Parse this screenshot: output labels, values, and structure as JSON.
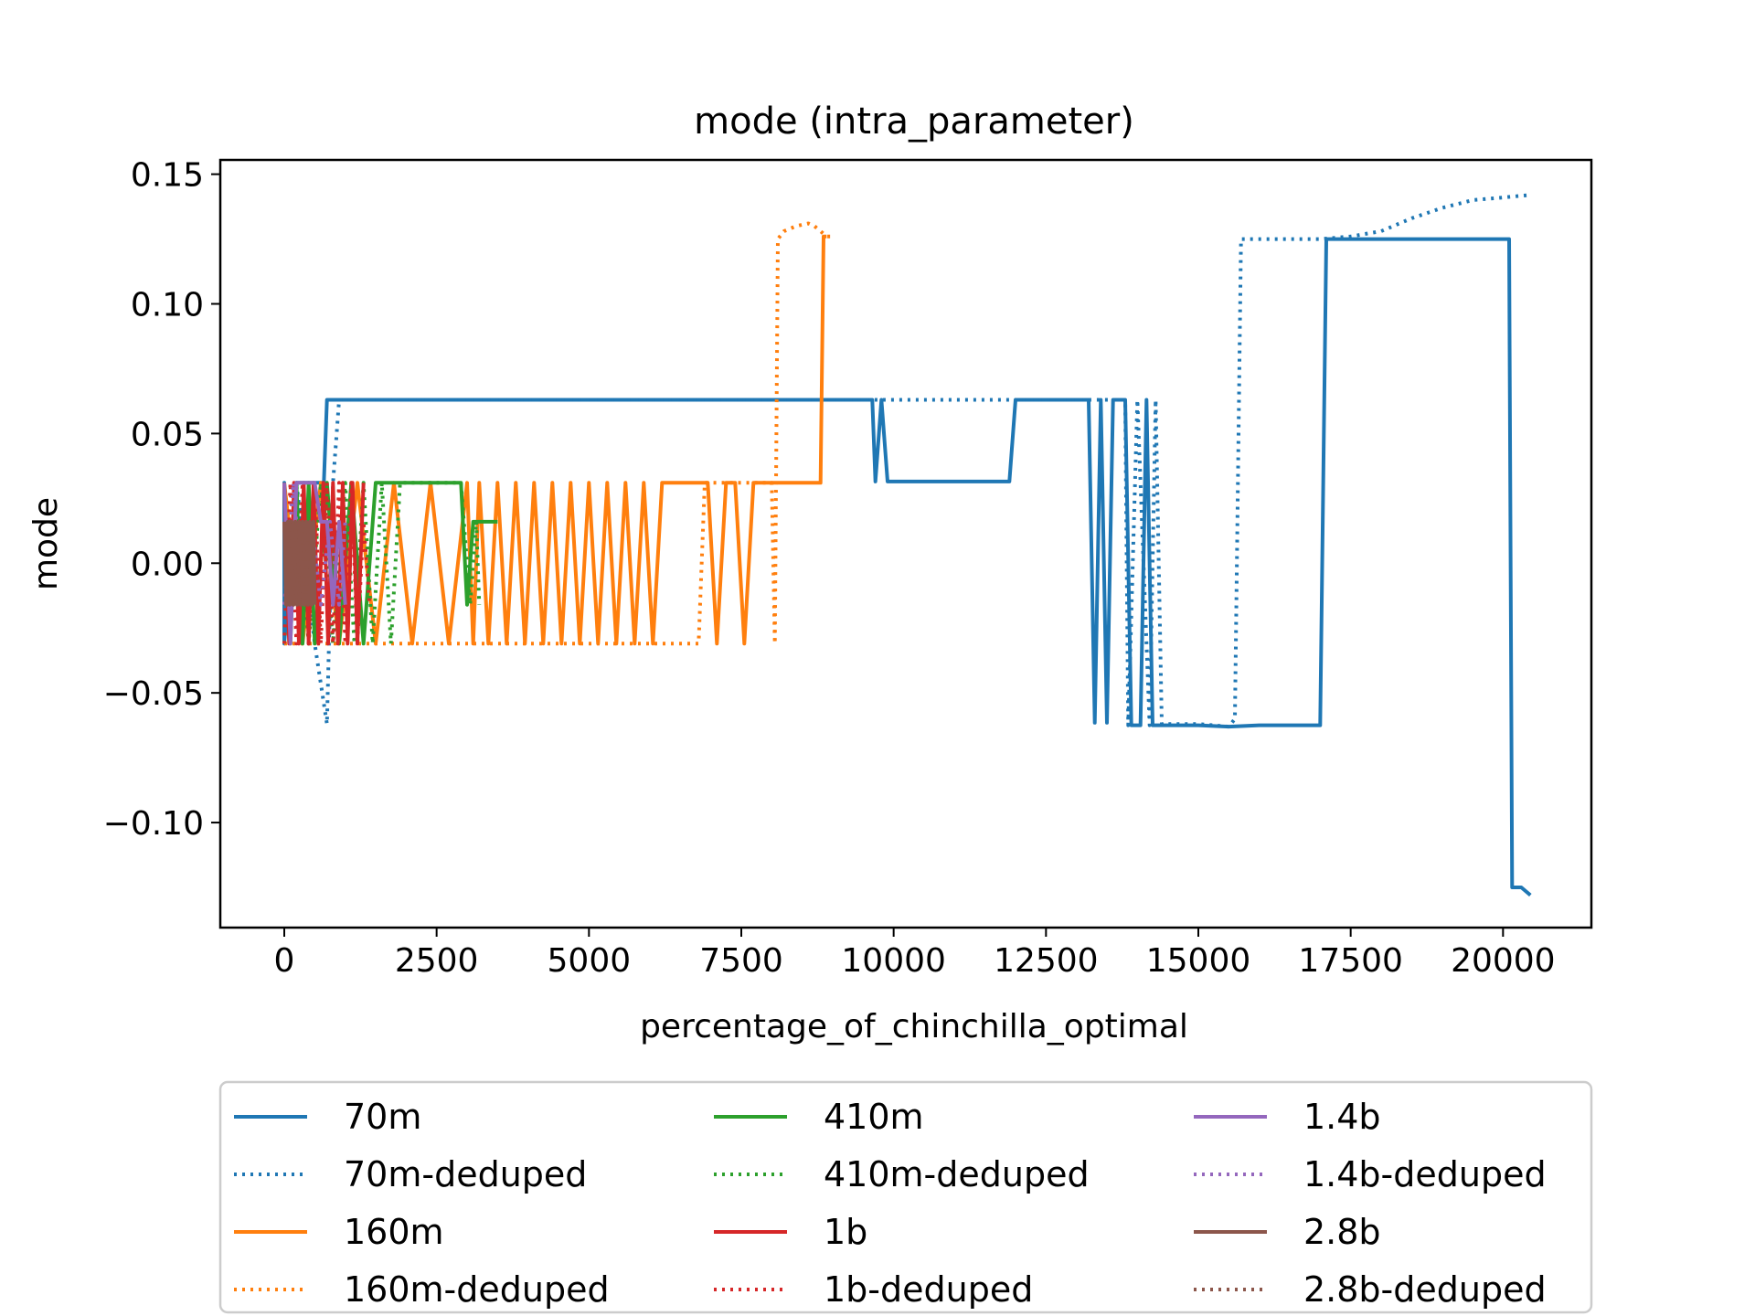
{
  "chart_data": {
    "type": "line",
    "title": "mode (intra_parameter)",
    "xlabel": "percentage_of_chinchilla_optimal",
    "ylabel": "mode",
    "xlim": [
      -1050,
      21450
    ],
    "ylim": [
      -0.1405,
      0.1555
    ],
    "xticks": [
      0,
      2500,
      5000,
      7500,
      10000,
      12500,
      15000,
      17500,
      20000
    ],
    "xtick_labels": [
      "0",
      "2500",
      "5000",
      "7500",
      "10000",
      "12500",
      "15000",
      "17500",
      "20000"
    ],
    "yticks": [
      0.15,
      0.1,
      0.05,
      0.0,
      -0.05,
      -0.1
    ],
    "ytick_labels": [
      "0.15",
      "0.10",
      "0.05",
      "0.00",
      "−0.05",
      "−0.10"
    ],
    "grid": false,
    "legend_placement": "below",
    "series": [
      {
        "name": "70m",
        "color": "#1f77b4",
        "dash": "solid",
        "x": [
          0,
          0,
          0,
          0,
          200,
          480,
          650,
          700,
          1000,
          2000,
          3000,
          4000,
          5000,
          6000,
          7000,
          8000,
          9000,
          9400,
          9650,
          9700,
          9800,
          9900,
          10000,
          10800,
          11500,
          11900,
          12000,
          12200,
          12600,
          13100,
          13200,
          13300,
          13400,
          13500,
          13600,
          13800,
          13900,
          14050,
          14150,
          14250,
          14500,
          15000,
          15500,
          16000,
          16500,
          17000,
          17100,
          17150,
          17200,
          18000,
          19000,
          19900,
          20000,
          20100,
          20150,
          20300,
          20450
        ],
        "y": [
          0.031,
          -0.031,
          0.031,
          -0.031,
          0.031,
          0.031,
          0.031,
          0.063,
          0.063,
          0.063,
          0.063,
          0.063,
          0.063,
          0.063,
          0.063,
          0.063,
          0.063,
          0.063,
          0.063,
          0.0315,
          0.063,
          0.0315,
          0.0315,
          0.0315,
          0.0315,
          0.0315,
          0.063,
          0.063,
          0.063,
          0.063,
          0.063,
          -0.0615,
          0.063,
          -0.0615,
          0.063,
          0.063,
          -0.0625,
          -0.0625,
          0.063,
          -0.0625,
          -0.0625,
          -0.0625,
          -0.063,
          -0.0625,
          -0.0625,
          -0.0625,
          0.125,
          0.125,
          0.125,
          0.125,
          0.125,
          0.125,
          0.125,
          0.125,
          -0.125,
          -0.125,
          -0.128
        ]
      },
      {
        "name": "70m-deduped",
        "color": "#1f77b4",
        "dash": "dot",
        "x": [
          0,
          200,
          500,
          700,
          800,
          850,
          900,
          1200,
          2000,
          4000,
          6000,
          8000,
          10000,
          12000,
          13000,
          13800,
          13850,
          14000,
          14200,
          14300,
          14400,
          15000,
          15500,
          15600,
          15700,
          16500,
          17000,
          17500,
          18000,
          18500,
          19000,
          19500,
          20000,
          20450
        ],
        "y": [
          0.0,
          0.031,
          -0.031,
          -0.062,
          0.031,
          0.047,
          0.063,
          0.063,
          0.063,
          0.063,
          0.063,
          0.063,
          0.063,
          0.063,
          0.063,
          0.063,
          -0.0625,
          0.063,
          -0.0625,
          0.063,
          -0.062,
          -0.062,
          -0.063,
          -0.06,
          0.125,
          0.125,
          0.125,
          0.126,
          0.128,
          0.133,
          0.137,
          0.14,
          0.141,
          0.142
        ]
      },
      {
        "name": "160m",
        "color": "#ff7f0e",
        "dash": "solid",
        "x": [
          0,
          300,
          600,
          900,
          1200,
          1500,
          1800,
          2100,
          2400,
          2700,
          3000,
          3100,
          3200,
          3350,
          3500,
          3650,
          3800,
          3950,
          4100,
          4250,
          4400,
          4550,
          4700,
          4850,
          5000,
          5150,
          5300,
          5450,
          5600,
          5750,
          5900,
          6050,
          6200,
          6350,
          6500,
          6650,
          6800,
          6950,
          7100,
          7250,
          7400,
          7550,
          7700,
          7850,
          8000,
          8200,
          8400,
          8600,
          8800,
          8850,
          8900
        ],
        "y": [
          0.031,
          -0.031,
          0.031,
          -0.031,
          0.031,
          -0.031,
          0.031,
          -0.031,
          0.031,
          -0.031,
          0.031,
          -0.031,
          0.031,
          -0.031,
          0.031,
          -0.031,
          0.031,
          -0.031,
          0.031,
          -0.031,
          0.031,
          -0.031,
          0.031,
          -0.031,
          0.031,
          -0.031,
          0.031,
          -0.031,
          0.031,
          -0.031,
          0.031,
          -0.031,
          0.031,
          0.031,
          0.031,
          0.031,
          0.031,
          0.031,
          -0.031,
          0.031,
          0.031,
          -0.031,
          0.031,
          0.031,
          0.031,
          0.031,
          0.031,
          0.031,
          0.031,
          0.126,
          0.126
        ]
      },
      {
        "name": "160m-deduped",
        "color": "#ff7f0e",
        "dash": "dot",
        "x": [
          0,
          1000,
          2000,
          3000,
          4000,
          5000,
          6000,
          6500,
          6700,
          6800,
          6900,
          7000,
          7500,
          7800,
          8000,
          8050,
          8100,
          8200,
          8400,
          8600,
          8700,
          8800,
          8900,
          9000
        ],
        "y": [
          -0.031,
          -0.031,
          -0.031,
          -0.031,
          -0.031,
          -0.031,
          -0.031,
          -0.031,
          -0.031,
          -0.031,
          0.031,
          0.031,
          0.031,
          0.031,
          0.031,
          -0.031,
          0.125,
          0.128,
          0.13,
          0.131,
          0.13,
          0.128,
          0.126,
          0.126
        ]
      },
      {
        "name": "410m",
        "color": "#2ca02c",
        "dash": "solid",
        "x": [
          0,
          100,
          200,
          300,
          400,
          500,
          700,
          900,
          1100,
          1300,
          1500,
          1700,
          2000,
          2500,
          2900,
          3000,
          3100,
          3200,
          3300,
          3400,
          3500
        ],
        "y": [
          0.031,
          -0.031,
          0.031,
          -0.031,
          0.031,
          -0.031,
          0.031,
          -0.031,
          0.031,
          -0.031,
          0.031,
          0.031,
          0.031,
          0.031,
          0.031,
          -0.016,
          0.016,
          0.016,
          0.016,
          0.016,
          0.016
        ]
      },
      {
        "name": "410m-deduped",
        "color": "#2ca02c",
        "dash": "dot",
        "x": [
          0,
          200,
          400,
          600,
          800,
          1000,
          1150,
          1300,
          1450,
          1600,
          1750,
          1900,
          2100,
          2500,
          2900,
          3050,
          3150,
          3200
        ],
        "y": [
          -0.031,
          0.031,
          -0.031,
          0.031,
          -0.031,
          0.031,
          -0.031,
          0.031,
          -0.031,
          0.031,
          -0.031,
          0.031,
          0.031,
          0.031,
          0.031,
          -0.016,
          0.016,
          -0.016
        ]
      },
      {
        "name": "1b",
        "color": "#d62728",
        "dash": "solid",
        "x": [
          0,
          80,
          160,
          240,
          320,
          400,
          480,
          560,
          640,
          720,
          800,
          880,
          960,
          1040,
          1120,
          1200,
          1300
        ],
        "y": [
          0.031,
          -0.031,
          0.031,
          -0.031,
          0.031,
          -0.031,
          0.031,
          -0.031,
          0.031,
          -0.031,
          0.031,
          -0.031,
          0.031,
          -0.031,
          0.031,
          -0.031,
          0.031
        ]
      },
      {
        "name": "1b-deduped",
        "color": "#d62728",
        "dash": "dot",
        "x": [
          0,
          100,
          200,
          300,
          400,
          500,
          600,
          700,
          800,
          900,
          1000,
          1100,
          1200,
          1300,
          1400
        ],
        "y": [
          -0.031,
          0.031,
          -0.031,
          0.031,
          -0.031,
          0.031,
          -0.031,
          0.031,
          -0.031,
          0.031,
          -0.031,
          0.031,
          -0.031,
          0.016,
          -0.016
        ]
      },
      {
        "name": "1.4b",
        "color": "#9467bd",
        "dash": "solid",
        "x": [
          0,
          100,
          200,
          300,
          400,
          500,
          600,
          700,
          800,
          900,
          1000
        ],
        "y": [
          0.031,
          -0.031,
          0.031,
          0.031,
          0.031,
          0.031,
          0.016,
          0.016,
          -0.016,
          0.016,
          -0.016
        ]
      },
      {
        "name": "1.4b-deduped",
        "color": "#9467bd",
        "dash": "dot",
        "x": [
          0,
          150,
          300,
          450,
          600,
          750,
          900,
          1000
        ],
        "y": [
          -0.016,
          0.031,
          -0.016,
          0.016,
          -0.016,
          0.016,
          -0.016,
          0.016
        ]
      },
      {
        "name": "2.8b",
        "color": "#8c564b",
        "dash": "solid",
        "x": [
          0,
          30,
          60,
          90,
          120,
          150,
          180,
          210,
          240,
          270,
          300,
          330,
          360,
          390,
          420,
          450,
          480,
          500
        ],
        "y": [
          0.016,
          -0.016,
          0.016,
          -0.016,
          0.016,
          -0.016,
          0.016,
          -0.016,
          0.016,
          -0.016,
          0.016,
          -0.016,
          0.016,
          -0.016,
          0.016,
          -0.016,
          0.016,
          -0.016
        ]
      },
      {
        "name": "2.8b-deduped",
        "color": "#8c564b",
        "dash": "dot",
        "x": [
          0,
          50,
          100,
          150,
          200,
          250,
          300,
          350,
          400
        ],
        "y": [
          0.016,
          -0.016,
          0.016,
          -0.016,
          0.016,
          -0.016,
          0.016,
          -0.016,
          0.016
        ]
      }
    ]
  }
}
